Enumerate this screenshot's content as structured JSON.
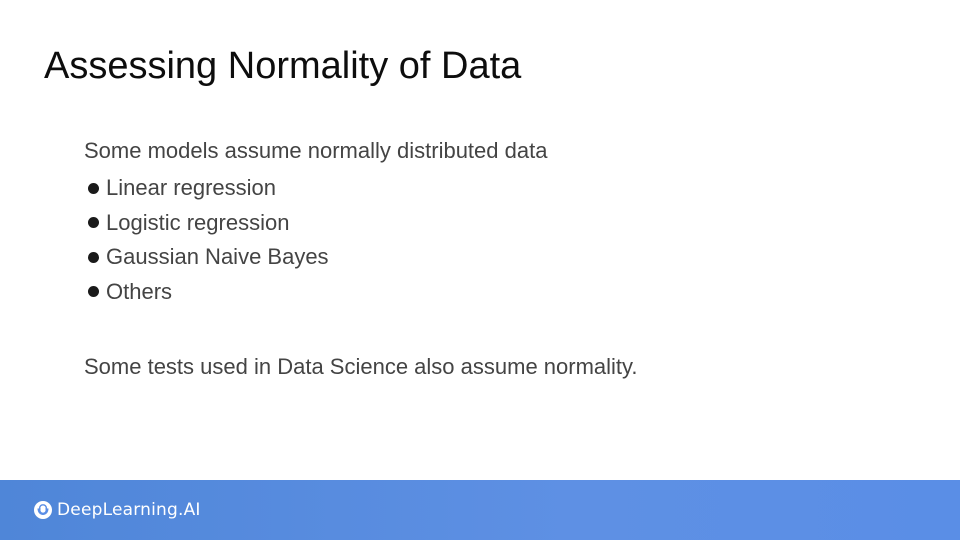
{
  "slide": {
    "title": "Assessing Normality of Data",
    "intro": "Some models assume normally distributed data",
    "bullets": [
      "Linear regression",
      "Logistic regression",
      "Gaussian Naive Bayes",
      "Others"
    ],
    "footnote": "Some tests used in Data Science also assume normality."
  },
  "footer": {
    "brand": "DeepLearning.AI",
    "icon": "deeplearning-logo-icon",
    "background_color": "#5a8ee6"
  }
}
